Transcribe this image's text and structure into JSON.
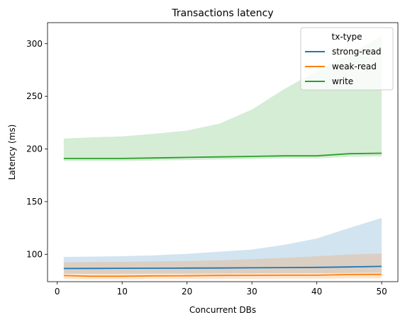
{
  "chart_data": {
    "type": "line",
    "title": "Transactions latency",
    "xlabel": "Concurrent DBs",
    "ylabel": "Latency (ms)",
    "xlim": [
      -1.5,
      52.5
    ],
    "ylim": [
      74,
      320
    ],
    "x_ticks": [
      0,
      10,
      20,
      30,
      40,
      50
    ],
    "y_ticks": [
      100,
      150,
      200,
      250,
      300
    ],
    "grid": false,
    "legend": {
      "title": "tx-type",
      "placement": "top-right"
    },
    "x": [
      1,
      5,
      10,
      15,
      20,
      25,
      30,
      35,
      40,
      45,
      50
    ],
    "series": [
      {
        "name": "strong-read",
        "color": "#1f77b4",
        "values": [
          86.5,
          86.6,
          86.7,
          86.8,
          86.9,
          87.0,
          87.2,
          87.4,
          87.6,
          88.0,
          88.5
        ],
        "band_upper": [
          97.5,
          97.8,
          98.2,
          99.0,
          100.5,
          102.5,
          104.5,
          109.0,
          115.0,
          125.0,
          134.5
        ],
        "band_lower": [
          81.5,
          81.4,
          81.4,
          81.5,
          81.6,
          81.7,
          81.8,
          81.9,
          82.0,
          82.3,
          82.6
        ]
      },
      {
        "name": "weak-read",
        "color": "#ff7f0e",
        "values": [
          79.8,
          79.2,
          79.2,
          79.5,
          79.6,
          79.9,
          80.0,
          80.1,
          80.1,
          80.8,
          80.9
        ],
        "band_upper": [
          92.5,
          92.6,
          92.9,
          93.2,
          93.6,
          94.3,
          95.3,
          96.6,
          98.2,
          99.8,
          100.8
        ],
        "band_lower": [
          76.5,
          76.3,
          76.3,
          76.4,
          76.5,
          76.6,
          76.7,
          76.8,
          76.8,
          77.0,
          77.1
        ]
      },
      {
        "name": "write",
        "color": "#2ca02c",
        "values": [
          191,
          191,
          191,
          191.5,
          192,
          192.5,
          193,
          193.5,
          193.5,
          195.5,
          196
        ],
        "band_upper": [
          210,
          211,
          212,
          214.5,
          217.5,
          224,
          237.5,
          257,
          274,
          290,
          307
        ],
        "band_lower": [
          188.5,
          188.5,
          188.5,
          189,
          189.5,
          190,
          190.5,
          191,
          191,
          192.5,
          193
        ]
      }
    ]
  }
}
